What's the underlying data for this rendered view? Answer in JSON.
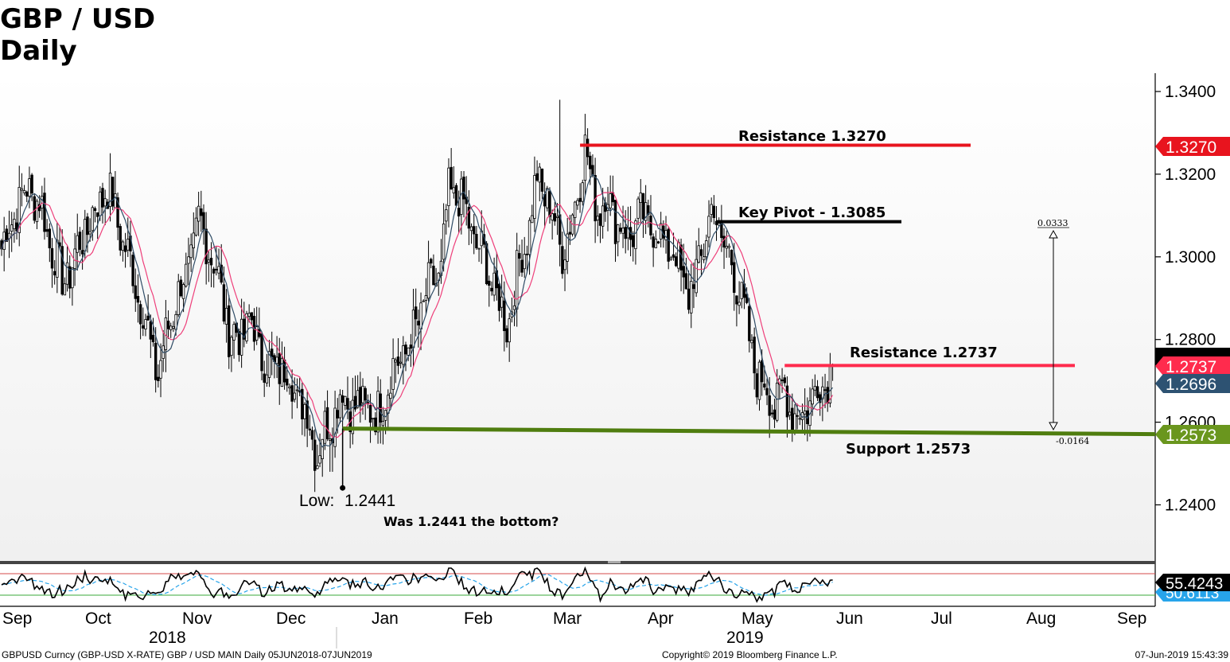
{
  "header": {
    "title": "GBP / USD",
    "subtitle": "Daily"
  },
  "chart_data": {
    "type": "candlestick",
    "y_axis": {
      "range": [
        1.2265,
        1.3495
      ],
      "ticks": [
        "1.3400",
        "1.3200",
        "1.3000",
        "1.2800",
        "1.2600",
        "1.2400"
      ],
      "side": "right"
    },
    "x_axis": {
      "months": [
        "Sep",
        "Oct",
        "Nov",
        "Dec",
        "Jan",
        "Feb",
        "Mar",
        "Apr",
        "May",
        "Jun",
        "Jul",
        "Aug",
        "Sep"
      ],
      "years": [
        "2018",
        "2019"
      ]
    },
    "price_tags": [
      {
        "label": "1.3270",
        "value": 1.327,
        "color": "#e8141e"
      },
      {
        "label": "1.2737",
        "value": 1.2737,
        "color": "#ff2b4d"
      },
      {
        "label": "1.2696",
        "value": 1.2696,
        "color": "#2d5272"
      },
      {
        "label": "1.2573",
        "value": 1.2573,
        "color": "#6a961e"
      }
    ],
    "levels": [
      {
        "label": "Resistance 1.3270",
        "value": 1.327,
        "color": "#e8141e"
      },
      {
        "label": "Key Pivot - 1.3085",
        "value": 1.3085,
        "color": "#000000"
      },
      {
        "label": "Resistance 1.2737",
        "value": 1.2737,
        "color": "#ff2b4d"
      },
      {
        "label": "Support 1.2573",
        "value": 1.2573,
        "color": "#4f7d0f"
      }
    ],
    "annotations": {
      "low_label": "Low:",
      "low_value": "1.2441",
      "question": "Was 1.2441 the bottom?",
      "range_up": "0.0333",
      "range_down": "-0.0164"
    },
    "moving_averages": [
      {
        "color": "#ee3f7a"
      },
      {
        "color": "#2f4c66"
      }
    ],
    "rsi": {
      "value_label": "55.4243",
      "second_label": "50.6113",
      "upper_color": "#d64b4b",
      "lower_color": "#3aa83a",
      "avg_color": "#27a4ea"
    },
    "price_path": [
      [
        0,
        1.302
      ],
      [
        5,
        1.311
      ],
      [
        11,
        1.317
      ],
      [
        16,
        1.311
      ],
      [
        20,
        1.302
      ],
      [
        24,
        1.294
      ],
      [
        28,
        1.298
      ],
      [
        32,
        1.305
      ],
      [
        37,
        1.311
      ],
      [
        41,
        1.317
      ],
      [
        44,
        1.313
      ],
      [
        48,
        1.304
      ],
      [
        52,
        1.296
      ],
      [
        56,
        1.287
      ],
      [
        59,
        1.278
      ],
      [
        62,
        1.272
      ],
      [
        65,
        1.28
      ],
      [
        69,
        1.29
      ],
      [
        73,
        1.295
      ],
      [
        78,
        1.308
      ],
      [
        82,
        1.303
      ],
      [
        86,
        1.294
      ],
      [
        90,
        1.282
      ],
      [
        94,
        1.28
      ],
      [
        98,
        1.285
      ],
      [
        102,
        1.278
      ],
      [
        107,
        1.272
      ],
      [
        110,
        1.274
      ],
      [
        114,
        1.271
      ],
      [
        118,
        1.265
      ],
      [
        122,
        1.26
      ],
      [
        125,
        1.252
      ],
      [
        128,
        1.258
      ],
      [
        131,
        1.262
      ],
      [
        135,
        1.267
      ],
      [
        140,
        1.263
      ],
      [
        145,
        1.265
      ],
      [
        148,
        1.26
      ],
      [
        152,
        1.268
      ],
      [
        156,
        1.274
      ],
      [
        161,
        1.278
      ],
      [
        165,
        1.285
      ],
      [
        169,
        1.292
      ],
      [
        174,
        1.297
      ],
      [
        177,
        1.315
      ],
      [
        181,
        1.315
      ],
      [
        185,
        1.308
      ],
      [
        188,
        1.303
      ],
      [
        192,
        1.298
      ],
      [
        196,
        1.29
      ],
      [
        200,
        1.284
      ],
      [
        203,
        1.292
      ],
      [
        206,
        1.301
      ],
      [
        209,
        1.308
      ],
      [
        212,
        1.319
      ],
      [
        216,
        1.314
      ],
      [
        219,
        1.308
      ],
      [
        222,
        1.302
      ],
      [
        225,
        1.306
      ],
      [
        228,
        1.317
      ],
      [
        231,
        1.326
      ],
      [
        234,
        1.316
      ],
      [
        237,
        1.311
      ],
      [
        240,
        1.315
      ],
      [
        244,
        1.308
      ],
      [
        248,
        1.305
      ],
      [
        252,
        1.309
      ],
      [
        256,
        1.309
      ],
      [
        260,
        1.305
      ],
      [
        264,
        1.303
      ],
      [
        268,
        1.298
      ],
      [
        272,
        1.29
      ],
      [
        275,
        1.296
      ],
      [
        279,
        1.306
      ],
      [
        282,
        1.312
      ],
      [
        285,
        1.304
      ],
      [
        289,
        1.298
      ],
      [
        293,
        1.29
      ],
      [
        296,
        1.279
      ],
      [
        299,
        1.272
      ],
      [
        303,
        1.268
      ],
      [
        306,
        1.264
      ],
      [
        310,
        1.268
      ],
      [
        313,
        1.263
      ],
      [
        317,
        1.261
      ],
      [
        320,
        1.266
      ],
      [
        323,
        1.268
      ],
      [
        326,
        1.27
      ],
      [
        329,
        1.2737
      ]
    ]
  },
  "footer": {
    "left": "GBPUSD Curncy (GBP-USD X-RATE) GBP / USD MAIN  Daily 05JUN2018-07JUN2019",
    "center": "Copyright© 2019 Bloomberg Finance L.P.",
    "right": "07-Jun-2019 15:43:39"
  }
}
